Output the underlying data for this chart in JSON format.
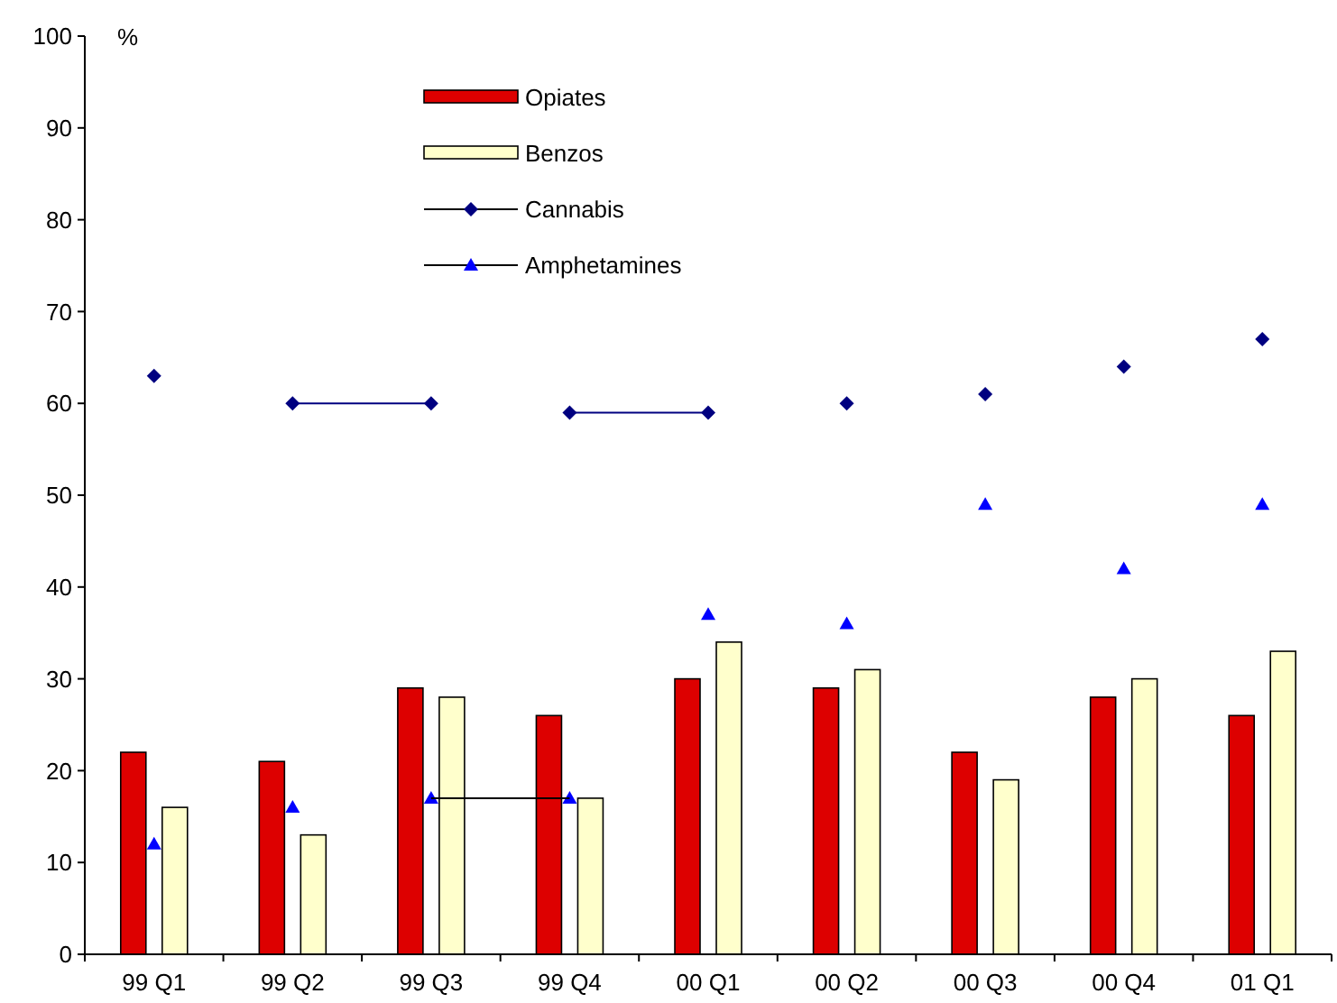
{
  "chart_data": {
    "type": "bar",
    "ylabel": "%",
    "categories": [
      "99 Q1",
      "99 Q2",
      "99 Q3",
      "99 Q4",
      "00 Q1",
      "00 Q2",
      "00 Q3",
      "00 Q4",
      "01 Q1"
    ],
    "ylim": [
      0,
      100
    ],
    "yticks": [
      0,
      10,
      20,
      30,
      40,
      50,
      60,
      70,
      80,
      90,
      100
    ],
    "grid": false,
    "legend": "top",
    "series": [
      {
        "name": "Opiates",
        "color": "#dd0000",
        "values": [
          22,
          21,
          29,
          26,
          30,
          29,
          22,
          28,
          26
        ]
      },
      {
        "name": "Benzos",
        "color": "#ffffcc",
        "values": [
          16,
          13,
          28,
          17,
          34,
          31,
          19,
          30,
          33
        ]
      },
      {
        "name": "Cannabis",
        "type": "scatter",
        "marker": "diamond",
        "color": "#000080",
        "values": [
          63,
          60,
          60,
          59,
          59,
          60,
          61,
          64,
          67
        ]
      },
      {
        "name": "Amphetamines",
        "type": "scatter",
        "marker": "triangle",
        "color": "#0000ff",
        "values": [
          12,
          16,
          17,
          17,
          37,
          36,
          49,
          42,
          49
        ]
      },
      {
        "type": "line",
        "color": "#000080",
        "marker": "none",
        "values": [
          null,
          60,
          60,
          null,
          null,
          null,
          null,
          null,
          null
        ]
      },
      {
        "type": "line",
        "color": "#000080",
        "marker": "none",
        "values": [
          null,
          null,
          null,
          59,
          59,
          null,
          null,
          null,
          null
        ]
      },
      {
        "type": "line",
        "color": "#000000",
        "marker": "none",
        "values": [
          null,
          null,
          17,
          17,
          null,
          null,
          null,
          null,
          null
        ]
      }
    ]
  }
}
